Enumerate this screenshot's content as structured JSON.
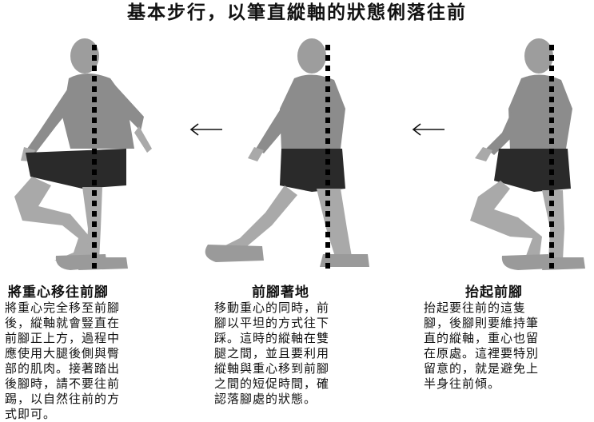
{
  "title": "基本步行，以筆直縱軸的狀態俐落往前",
  "sections": [
    {
      "heading": "將重心移往前腳",
      "lines": [
        "將重心完全移至前腳",
        "後，縱軸就會豎直在",
        "前腳正上方，過程中",
        "應使用大腿後側與臀",
        "部的肌肉。接著踏出",
        "後腳時，請不要往前",
        "踢，以自然往前的方",
        "式即可。"
      ]
    },
    {
      "heading": "前腳著地",
      "lines": [
        "移動重心的同時，前",
        "腳以平坦的方式往下",
        "踩。這時的縱軸在雙",
        "腿之間，並且要利用",
        "縱軸與重心移到前腳",
        "之間的短促時間，確",
        "認落腳處的狀態。"
      ]
    },
    {
      "heading": "抬起前腳",
      "lines": [
        "抬起要往前的這隻",
        "腳，後腳則要維持筆",
        "直的縱軸，重心也留",
        "在原處。這裡要特別",
        "留意的，就是避免上",
        "半身往前傾。"
      ]
    }
  ],
  "colors": {
    "shirt": "#8c8c8c",
    "shorts": "#2a2a2a",
    "skin": "#a9a9a9",
    "shoe": "#9a9a9a",
    "axis": "#000000"
  }
}
